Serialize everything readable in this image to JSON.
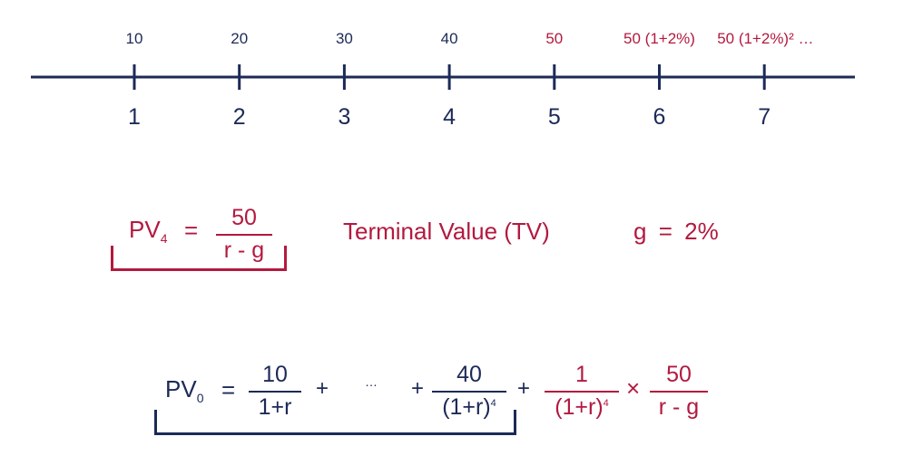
{
  "timeline": {
    "periods": [
      "1",
      "2",
      "3",
      "4",
      "5",
      "6",
      "7"
    ],
    "cash_flows": [
      "10",
      "20",
      "30",
      "40",
      "50",
      "50 (1+2%)",
      "50 (1+2%)²  …"
    ],
    "colors": {
      "navy": "#1c2a57",
      "red": "#b3193f"
    }
  },
  "pv4_formula": {
    "pv": "PV",
    "sub": "4",
    "eq": "=",
    "numerator": "50",
    "denominator": "r - g"
  },
  "terminal_value_label": "Terminal Value (TV)",
  "growth": {
    "g": "g",
    "eq": "=",
    "value": "2%"
  },
  "pv0_formula": {
    "pv": "PV",
    "sub": "0",
    "eq": "=",
    "term1_num": "10",
    "term1_den": "1+r",
    "plus1": "+",
    "ellipsis": "…",
    "plus2": "+",
    "term4_num": "40",
    "term4_den_base": "(1+r)",
    "term4_den_exp": "4",
    "plus3": "+",
    "disc_num": "1",
    "disc_den_base": "(1+r)",
    "disc_den_exp": "4",
    "times": "×",
    "tv_num": "50",
    "tv_den": "r - g"
  }
}
